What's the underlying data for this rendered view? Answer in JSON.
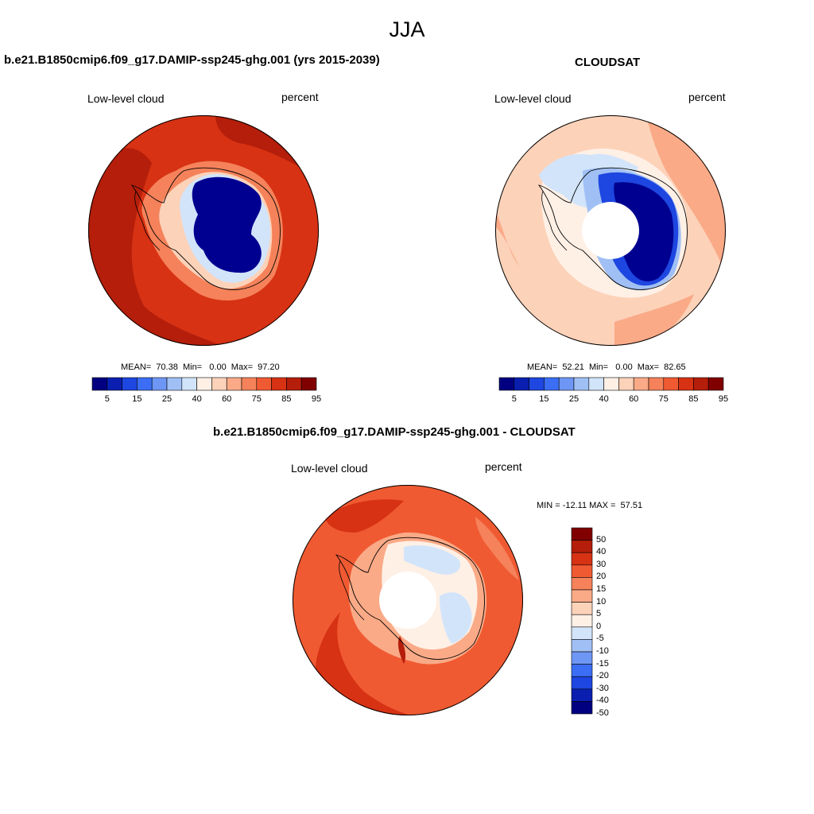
{
  "figure": {
    "season": "JJA",
    "colors": {
      "blue_end": "#000080",
      "red_end": "#800000",
      "ocean_red": "#d93a14",
      "deep_red": "#b8260f",
      "land_blue": "#00008f",
      "coastline": "#000000"
    }
  },
  "panels": [
    {
      "id": "model",
      "title": "b.e21.B1850cmip6.f09_g17.DAMIP-ssp245-ghg.001 (yrs 2015-2039)",
      "left_label": "Low-level cloud",
      "right_label": "percent",
      "stats": "MEAN=  70.38  Min=   0.00  Max=  97.20",
      "summary": {
        "mean": 70.38,
        "min": 0.0,
        "max": 97.2
      }
    },
    {
      "id": "cloudsat",
      "title": "CLOUDSAT",
      "left_label": "Low-level cloud",
      "right_label": "percent",
      "stats": "MEAN=  52.21  Min=   0.00  Max=  82.65",
      "summary": {
        "mean": 52.21,
        "min": 0.0,
        "max": 82.65
      }
    },
    {
      "id": "difference",
      "title": "b.e21.B1850cmip6.f09_g17.DAMIP-ssp245-ghg.001 - CLOUDSAT",
      "left_label": "Low-level cloud",
      "right_label": "percent",
      "stats": "MIN = -12.11 MAX =  57.51",
      "summary": {
        "min": -12.11,
        "max": 57.51
      }
    }
  ],
  "colorbar_horizontal": {
    "colors": [
      "#000080",
      "#0a1fb0",
      "#1e46e0",
      "#3c6ef5",
      "#6e96f5",
      "#a0c0f5",
      "#d2e4fa",
      "#fff0e6",
      "#fcd2b9",
      "#faaa87",
      "#f5825a",
      "#f05a32",
      "#d73214",
      "#b41e0a",
      "#800000"
    ],
    "labels": [
      "5",
      "15",
      "25",
      "40",
      "60",
      "75",
      "85",
      "95"
    ]
  },
  "colorbar_vertical": {
    "colors": [
      "#800000",
      "#b41e0a",
      "#d73214",
      "#f05a32",
      "#f5825a",
      "#faaa87",
      "#fcd2b9",
      "#fff0e6",
      "#d2e4fa",
      "#a0c0f5",
      "#6e96f5",
      "#3c6ef5",
      "#1e46e0",
      "#0a1fb0",
      "#000080"
    ],
    "labels": [
      "50",
      "40",
      "30",
      "20",
      "15",
      "10",
      "5",
      "0",
      "-5",
      "-10",
      "-15",
      "-20",
      "-30",
      "-40",
      "-50"
    ]
  }
}
